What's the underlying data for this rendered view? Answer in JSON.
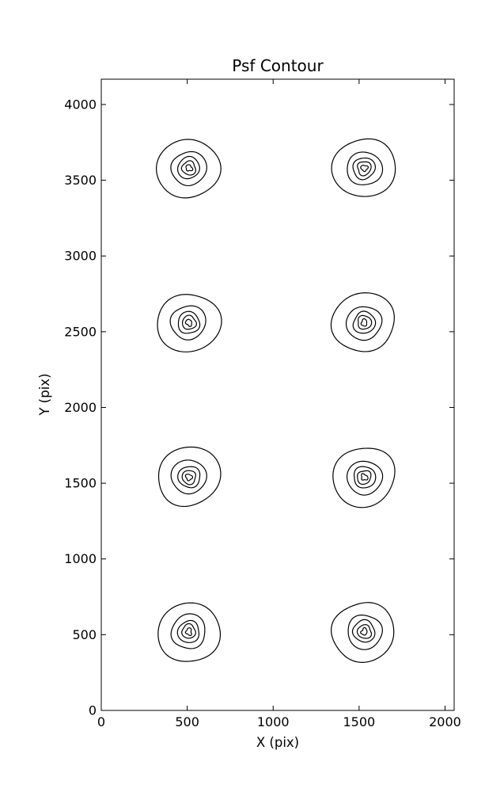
{
  "figure": {
    "background": "#ffffff",
    "frame_color": "#000000"
  },
  "chart_data": {
    "type": "contour",
    "title": "Psf Contour",
    "xlabel": "X (pix)",
    "ylabel": "Y (pix)",
    "xlim": [
      0,
      2053
    ],
    "ylim": [
      0,
      4167
    ],
    "xticks": [
      0,
      500,
      1000,
      1500,
      2000
    ],
    "yticks": [
      0,
      500,
      1000,
      1500,
      2000,
      2500,
      3000,
      3500,
      4000
    ],
    "grid": false,
    "legend_position": "none",
    "line_color": "#000000",
    "psf_centers": [
      {
        "x": 510,
        "y": 3580
      },
      {
        "x": 1530,
        "y": 3580
      },
      {
        "x": 510,
        "y": 2560
      },
      {
        "x": 1530,
        "y": 2560
      },
      {
        "x": 510,
        "y": 1540
      },
      {
        "x": 1530,
        "y": 1540
      },
      {
        "x": 510,
        "y": 520
      },
      {
        "x": 1530,
        "y": 520
      }
    ],
    "contour_levels_rx": [
      184,
      101,
      64,
      41,
      18
    ],
    "contour_levels_ry": [
      193,
      112,
      71,
      44,
      21
    ]
  }
}
